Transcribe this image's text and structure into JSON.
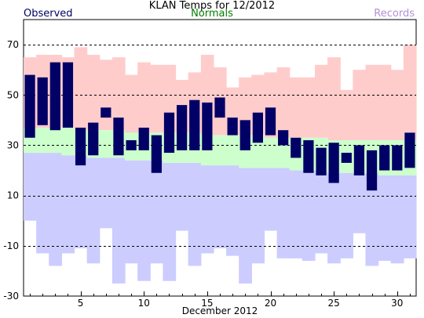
{
  "chart_data": {
    "type": "bar",
    "title": "KLAN Temps for 12/2012",
    "xlabel": "December 2012",
    "ylabel": "",
    "xlim": [
      0.5,
      31.5
    ],
    "ylim": [
      -30,
      80
    ],
    "yticks": [
      -30,
      -10,
      10,
      30,
      50,
      70
    ],
    "xticks": [
      5,
      10,
      15,
      20,
      25,
      30
    ],
    "grid": "dashed horizontal at y ticks",
    "legend": {
      "observed": "Observed",
      "normals": "Normals",
      "records": "Records",
      "placement": "top"
    },
    "colors": {
      "observed": "#000066",
      "normals": "#ccffcc",
      "records_high": "#ffcccc",
      "records_low": "#ccccff",
      "grid": "#000000"
    },
    "days": [
      1,
      2,
      3,
      4,
      5,
      6,
      7,
      8,
      9,
      10,
      11,
      12,
      13,
      14,
      15,
      16,
      17,
      18,
      19,
      20,
      21,
      22,
      23,
      24,
      25,
      26,
      27,
      28,
      29,
      30,
      31
    ],
    "series": [
      {
        "name": "Observed",
        "kind": "range",
        "high": [
          58,
          57,
          63,
          63,
          37,
          39,
          45,
          41,
          32,
          37,
          34,
          43,
          46,
          48,
          47,
          49,
          41,
          40,
          43,
          45,
          36,
          33,
          32,
          29,
          31,
          27,
          30,
          28,
          30,
          30,
          35
        ],
        "low": [
          33,
          38,
          36,
          37,
          22,
          26,
          41,
          26,
          28,
          28,
          19,
          27,
          28,
          28,
          28,
          41,
          34,
          28,
          31,
          34,
          30,
          25,
          19,
          18,
          15,
          23,
          18,
          12,
          20,
          20,
          21
        ]
      },
      {
        "name": "Normals",
        "kind": "range",
        "high": [
          37,
          37,
          37,
          37,
          36,
          36,
          36,
          36,
          35,
          35,
          35,
          35,
          35,
          35,
          34,
          34,
          34,
          34,
          34,
          33,
          33,
          33,
          33,
          33,
          32,
          32,
          32,
          32,
          32,
          32,
          32
        ],
        "low": [
          27,
          27,
          27,
          26,
          26,
          25,
          25,
          25,
          24,
          24,
          24,
          23,
          23,
          23,
          22,
          22,
          22,
          21,
          21,
          21,
          21,
          20,
          20,
          20,
          19,
          19,
          19,
          19,
          18,
          18,
          18
        ]
      },
      {
        "name": "Records",
        "kind": "range",
        "high": [
          65,
          66,
          66,
          65,
          69,
          66,
          64,
          65,
          58,
          63,
          62,
          62,
          56,
          59,
          66,
          61,
          53,
          57,
          58,
          59,
          61,
          57,
          57,
          62,
          65,
          52,
          60,
          62,
          62,
          60,
          70
        ],
        "low": [
          0,
          -13,
          -18,
          -13,
          -11,
          -17,
          -3,
          -25,
          -17,
          -24,
          -17,
          -24,
          -4,
          -18,
          -13,
          -11,
          -14,
          -25,
          -17,
          -4,
          -15,
          -15,
          -16,
          -13,
          -17,
          -15,
          -5,
          -18,
          -16,
          -17,
          -15
        ]
      }
    ]
  }
}
